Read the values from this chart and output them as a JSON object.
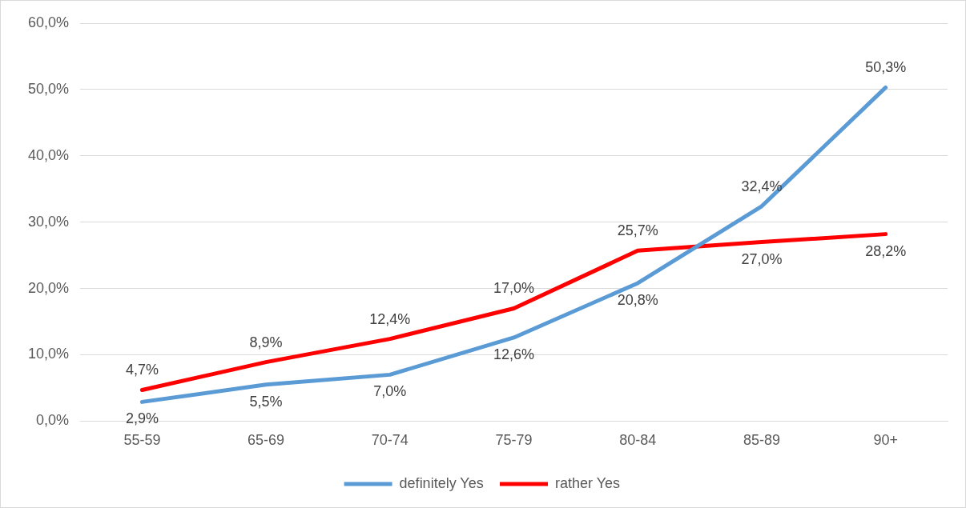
{
  "chart_data": {
    "type": "line",
    "categories": [
      "55-59",
      "65-69",
      "70-74",
      "75-79",
      "80-84",
      "85-89",
      "90+"
    ],
    "series": [
      {
        "name": "definitely Yes",
        "color": "#5b9bd5",
        "values": [
          2.9,
          5.5,
          7.0,
          12.6,
          20.8,
          32.4,
          50.3
        ],
        "value_labels": [
          "2,9%",
          "5,5%",
          "7,0%",
          "12,6%",
          "20,8%",
          "32,4%",
          "50,3%"
        ]
      },
      {
        "name": "rather Yes",
        "color": "#ff0000",
        "values": [
          4.7,
          8.9,
          12.4,
          17.0,
          25.7,
          27.0,
          28.2
        ],
        "value_labels": [
          "4,7%",
          "8,9%",
          "12,4%",
          "17,0%",
          "25,7%",
          "27,0%",
          "28,2%"
        ]
      }
    ],
    "ylim": [
      0,
      60
    ],
    "yticks": [
      {
        "value": 0,
        "label": "0,0%"
      },
      {
        "value": 10,
        "label": "10,0%"
      },
      {
        "value": 20,
        "label": "20,0%"
      },
      {
        "value": 30,
        "label": "30,0%"
      },
      {
        "value": 40,
        "label": "40,0%"
      },
      {
        "value": 50,
        "label": "50,0%"
      },
      {
        "value": 60,
        "label": "60,0%"
      }
    ],
    "grid": "y",
    "legend": "bottom",
    "marker": "none",
    "line_style": "solid"
  }
}
